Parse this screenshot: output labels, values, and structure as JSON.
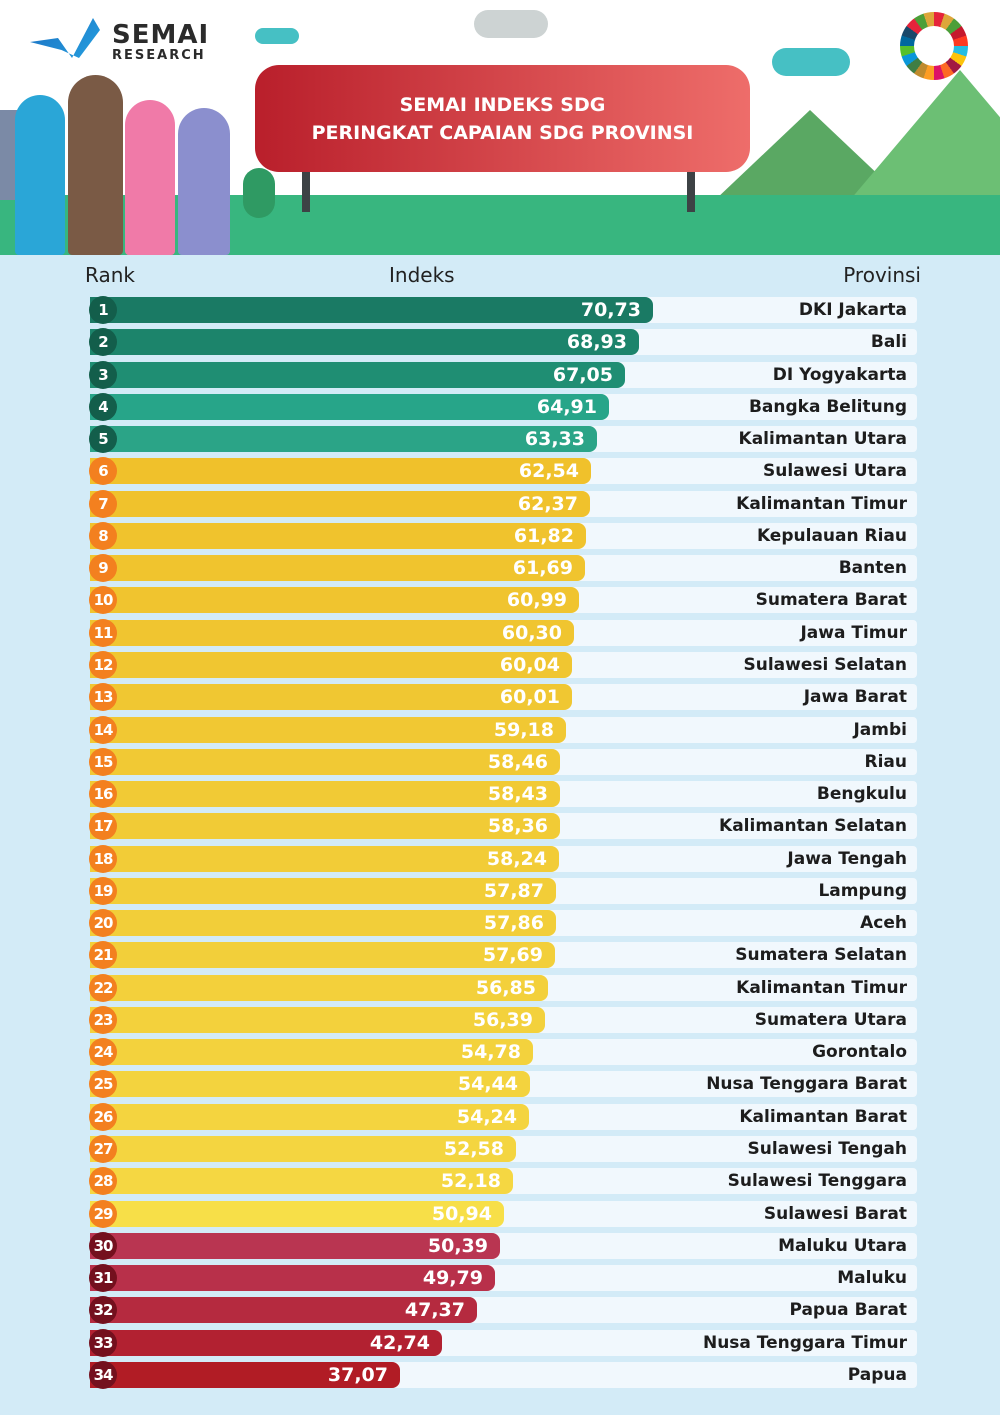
{
  "brand": {
    "name": "SEMAI",
    "sub": "RESEARCH"
  },
  "title": {
    "line1": "SEMAI INDEKS SDG",
    "line2": "PERINGKAT CAPAIAN SDG PROVINSI"
  },
  "colors": {
    "rank_green": "#135e4b",
    "rank_orange": "#f3801f",
    "rank_red": "#74101e",
    "ground": "#38b67f",
    "background": "#d3ebf7"
  },
  "chart_data": {
    "type": "bar",
    "orientation": "horizontal",
    "columns": {
      "rank": "Rank",
      "value": "Indeks",
      "category": "Provinsi"
    },
    "rows": [
      {
        "rank": "1",
        "value": "70,73",
        "v": 70.73,
        "province": "DKI Jakarta",
        "color": "#1a7a64",
        "badge": "rank_green"
      },
      {
        "rank": "2",
        "value": "68,93",
        "v": 68.93,
        "province": "Bali",
        "color": "#1c846b",
        "badge": "rank_green"
      },
      {
        "rank": "3",
        "value": "67,05",
        "v": 67.05,
        "province": "DI Yogyakarta",
        "color": "#1f8e73",
        "badge": "rank_green"
      },
      {
        "rank": "4",
        "value": "64,91",
        "v": 64.91,
        "province": "Bangka Belitung",
        "color": "#27a589",
        "badge": "rank_green"
      },
      {
        "rank": "5",
        "value": "63,33",
        "v": 63.33,
        "province": "Kalimantan Utara",
        "color": "#2ba487",
        "badge": "rank_green"
      },
      {
        "rank": "6",
        "value": "62,54",
        "v": 62.54,
        "province": "Sulawesi Utara",
        "color": "#f0c12b",
        "badge": "rank_orange"
      },
      {
        "rank": "7",
        "value": "62,37",
        "v": 62.37,
        "province": "Kalimantan Timur",
        "color": "#f0c22c",
        "badge": "rank_orange"
      },
      {
        "rank": "8",
        "value": "61,82",
        "v": 61.82,
        "province": "Kepulauan Riau",
        "color": "#f0c32d",
        "badge": "rank_orange"
      },
      {
        "rank": "9",
        "value": "61,69",
        "v": 61.69,
        "province": "Banten",
        "color": "#f0c42e",
        "badge": "rank_orange"
      },
      {
        "rank": "10",
        "value": "60,99",
        "v": 60.99,
        "province": "Sumatera Barat",
        "color": "#f0c42f",
        "badge": "rank_orange"
      },
      {
        "rank": "11",
        "value": "60,30",
        "v": 60.3,
        "province": "Jawa Timur",
        "color": "#f0c530",
        "badge": "rank_orange"
      },
      {
        "rank": "12",
        "value": "60,04",
        "v": 60.04,
        "province": "Sulawesi Selatan",
        "color": "#f0c631",
        "badge": "rank_orange"
      },
      {
        "rank": "13",
        "value": "60,01",
        "v": 60.01,
        "province": "Jawa Barat",
        "color": "#f0c732",
        "badge": "rank_orange"
      },
      {
        "rank": "14",
        "value": "59,18",
        "v": 59.18,
        "province": "Jambi",
        "color": "#f1c833",
        "badge": "rank_orange"
      },
      {
        "rank": "15",
        "value": "58,46",
        "v": 58.46,
        "province": "Riau",
        "color": "#f1c934",
        "badge": "rank_orange"
      },
      {
        "rank": "16",
        "value": "58,43",
        "v": 58.43,
        "province": "Bengkulu",
        "color": "#f1ca35",
        "badge": "rank_orange"
      },
      {
        "rank": "17",
        "value": "58,36",
        "v": 58.36,
        "province": "Kalimantan Selatan",
        "color": "#f1cb36",
        "badge": "rank_orange"
      },
      {
        "rank": "18",
        "value": "58,24",
        "v": 58.24,
        "province": "Jawa Tengah",
        "color": "#f2cc37",
        "badge": "rank_orange"
      },
      {
        "rank": "19",
        "value": "57,87",
        "v": 57.87,
        "province": "Lampung",
        "color": "#f2cd38",
        "badge": "rank_orange"
      },
      {
        "rank": "20",
        "value": "57,86",
        "v": 57.86,
        "province": "Aceh",
        "color": "#f2ce39",
        "badge": "rank_orange"
      },
      {
        "rank": "21",
        "value": "57,69",
        "v": 57.69,
        "province": "Sumatera Selatan",
        "color": "#f2cf3a",
        "badge": "rank_orange"
      },
      {
        "rank": "22",
        "value": "56,85",
        "v": 56.85,
        "province": "Kalimantan Timur",
        "color": "#f3d03b",
        "badge": "rank_orange"
      },
      {
        "rank": "23",
        "value": "56,39",
        "v": 56.39,
        "province": "Sumatera Utara",
        "color": "#f3d13c",
        "badge": "rank_orange"
      },
      {
        "rank": "24",
        "value": "54,78",
        "v": 54.78,
        "province": "Gorontalo",
        "color": "#f3d23d",
        "badge": "rank_orange"
      },
      {
        "rank": "25",
        "value": "54,44",
        "v": 54.44,
        "province": "Nusa Tenggara Barat",
        "color": "#f3d33e",
        "badge": "rank_orange"
      },
      {
        "rank": "26",
        "value": "54,24",
        "v": 54.24,
        "province": "Kalimantan Barat",
        "color": "#f4d43f",
        "badge": "rank_orange"
      },
      {
        "rank": "27",
        "value": "52,58",
        "v": 52.58,
        "province": "Sulawesi Tengah",
        "color": "#f4d540",
        "badge": "rank_orange"
      },
      {
        "rank": "28",
        "value": "52,18",
        "v": 52.18,
        "province": "Sulawesi Tenggara",
        "color": "#f5d742",
        "badge": "rank_orange"
      },
      {
        "rank": "29",
        "value": "50,94",
        "v": 50.94,
        "province": "Sulawesi Barat",
        "color": "#f7df48",
        "badge": "rank_orange"
      },
      {
        "rank": "30",
        "value": "50,39",
        "v": 50.39,
        "province": "Maluku Utara",
        "color": "#b93551",
        "badge": "rank_red"
      },
      {
        "rank": "31",
        "value": "49,79",
        "v": 49.79,
        "province": "Maluku",
        "color": "#b8304a",
        "badge": "rank_red"
      },
      {
        "rank": "32",
        "value": "47,37",
        "v": 47.37,
        "province": "Papua Barat",
        "color": "#b52a3f",
        "badge": "rank_red"
      },
      {
        "rank": "33",
        "value": "42,74",
        "v": 42.74,
        "province": "Nusa Tenggara Timur",
        "color": "#b22131",
        "badge": "rank_red"
      },
      {
        "rank": "34",
        "value": "37,07",
        "v": 37.07,
        "province": "Papua",
        "color": "#b11c25",
        "badge": "rank_red"
      }
    ]
  }
}
